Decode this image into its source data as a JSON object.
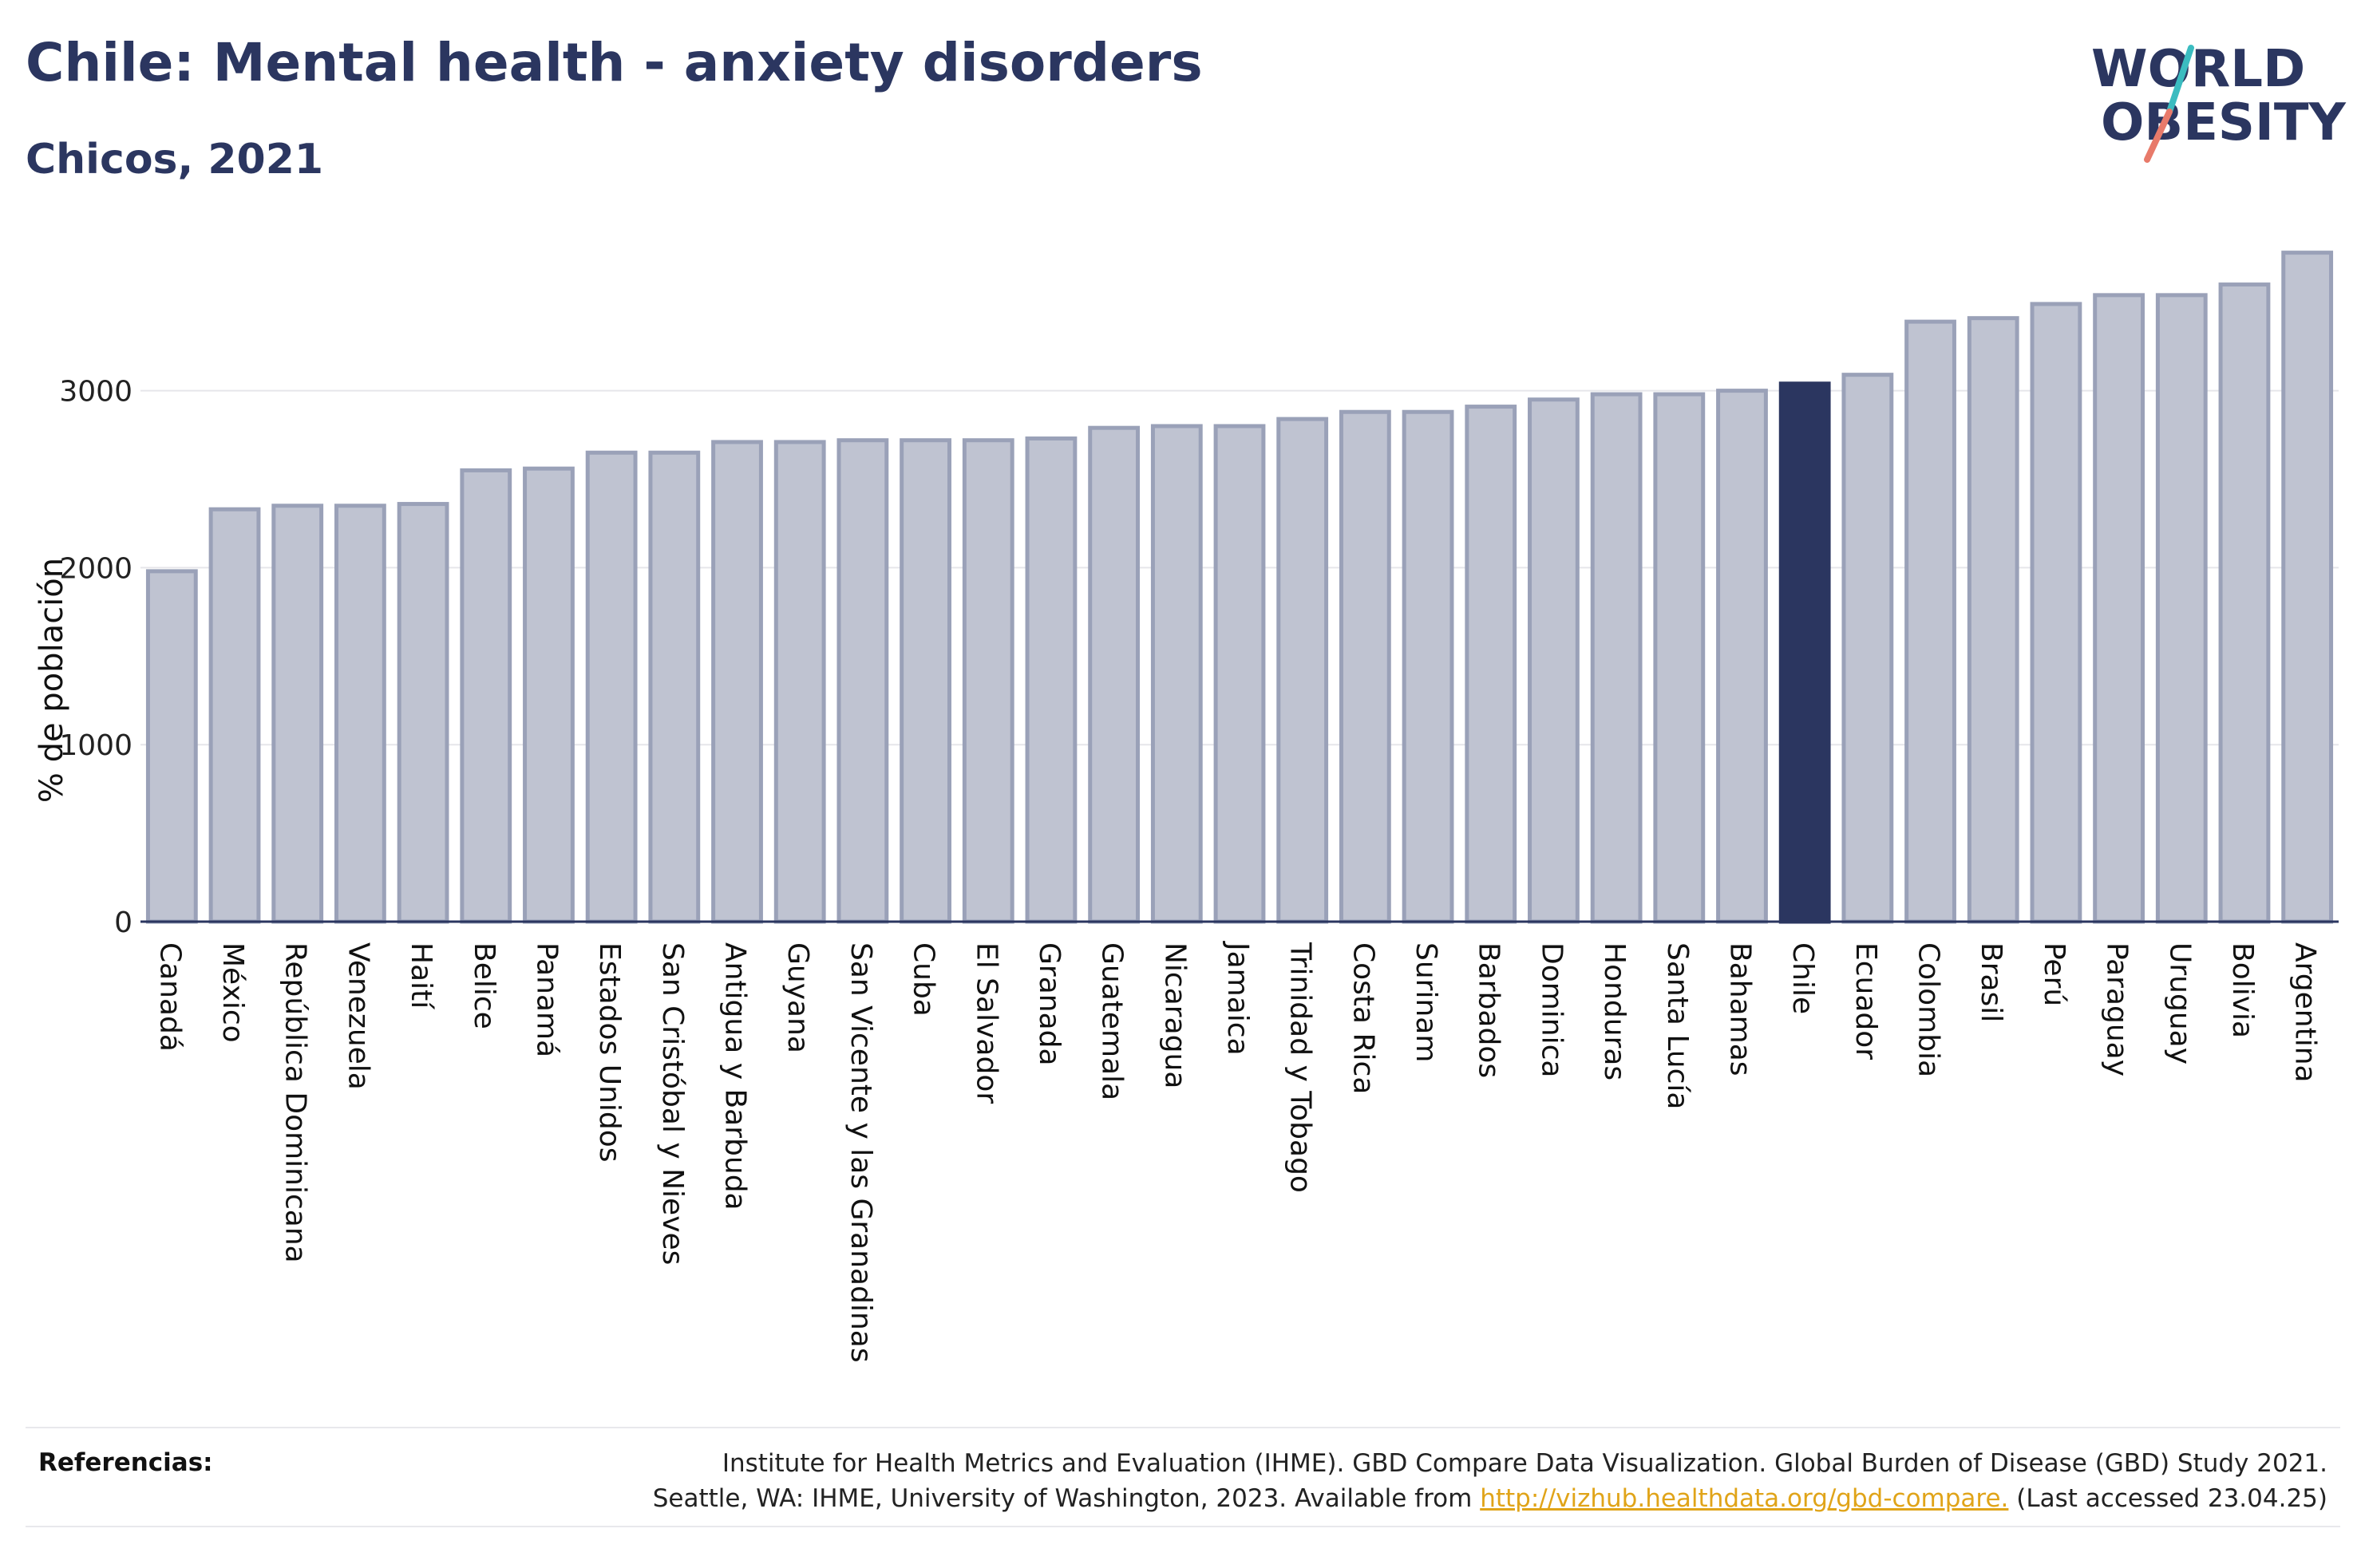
{
  "title": "Chile: Mental health - anxiety disorders",
  "subtitle": "Chicos, 2021",
  "logo": {
    "line1": "WORLD",
    "line2": "OBESITY",
    "colors": {
      "text": "#2b3660",
      "slash_teal": "#3bbcc0",
      "slash_coral": "#e87a6a"
    }
  },
  "colors": {
    "bar": "#bfc3d1",
    "bar_stroke": "#9aa1b8",
    "highlight": "#2b3660",
    "text": "#2b3660"
  },
  "references": {
    "label": "Referencias:",
    "line1": "Institute for Health Metrics and Evaluation (IHME). GBD Compare Data Visualization. Global Burden of Disease (GBD) Study 2021.",
    "line2_prefix": "Seattle, WA: IHME, University of Washington, 2023. Available from ",
    "link": "http://vizhub.healthdata.org/gbd-compare.",
    "line2_suffix": " (Last accessed 23.04.25)"
  },
  "chart_data": {
    "type": "bar",
    "ylabel": "% de población",
    "ylim": [
      0,
      3900
    ],
    "yticks": [
      "0",
      "1000",
      "2000",
      "3000"
    ],
    "ytick_values": [
      0,
      1000,
      2000,
      3000
    ],
    "grid": true,
    "highlight": "Chile",
    "categories": [
      "Canadá",
      "México",
      "República Dominicana",
      "Venezuela",
      "Haití",
      "Belice",
      "Panamá",
      "Estados Unidos",
      "San Cristóbal y Nieves",
      "Antigua y Barbuda",
      "Guyana",
      "San Vicente y las Granadinas",
      "Cuba",
      "El Salvador",
      "Granada",
      "Guatemala",
      "Nicaragua",
      "Jamaica",
      "Trinidad y Tobago",
      "Costa Rica",
      "Surinam",
      "Barbados",
      "Dominica",
      "Honduras",
      "Santa Lucía",
      "Bahamas",
      "Chile",
      "Ecuador",
      "Colombia",
      "Brasil",
      "Perú",
      "Paraguay",
      "Uruguay",
      "Bolivia",
      "Argentina"
    ],
    "values": [
      1980,
      2330,
      2350,
      2350,
      2360,
      2550,
      2560,
      2650,
      2650,
      2710,
      2710,
      2720,
      2720,
      2720,
      2730,
      2790,
      2800,
      2800,
      2840,
      2880,
      2880,
      2910,
      2950,
      2980,
      2980,
      3000,
      3040,
      3090,
      3390,
      3410,
      3490,
      3540,
      3540,
      3600,
      3780
    ]
  }
}
